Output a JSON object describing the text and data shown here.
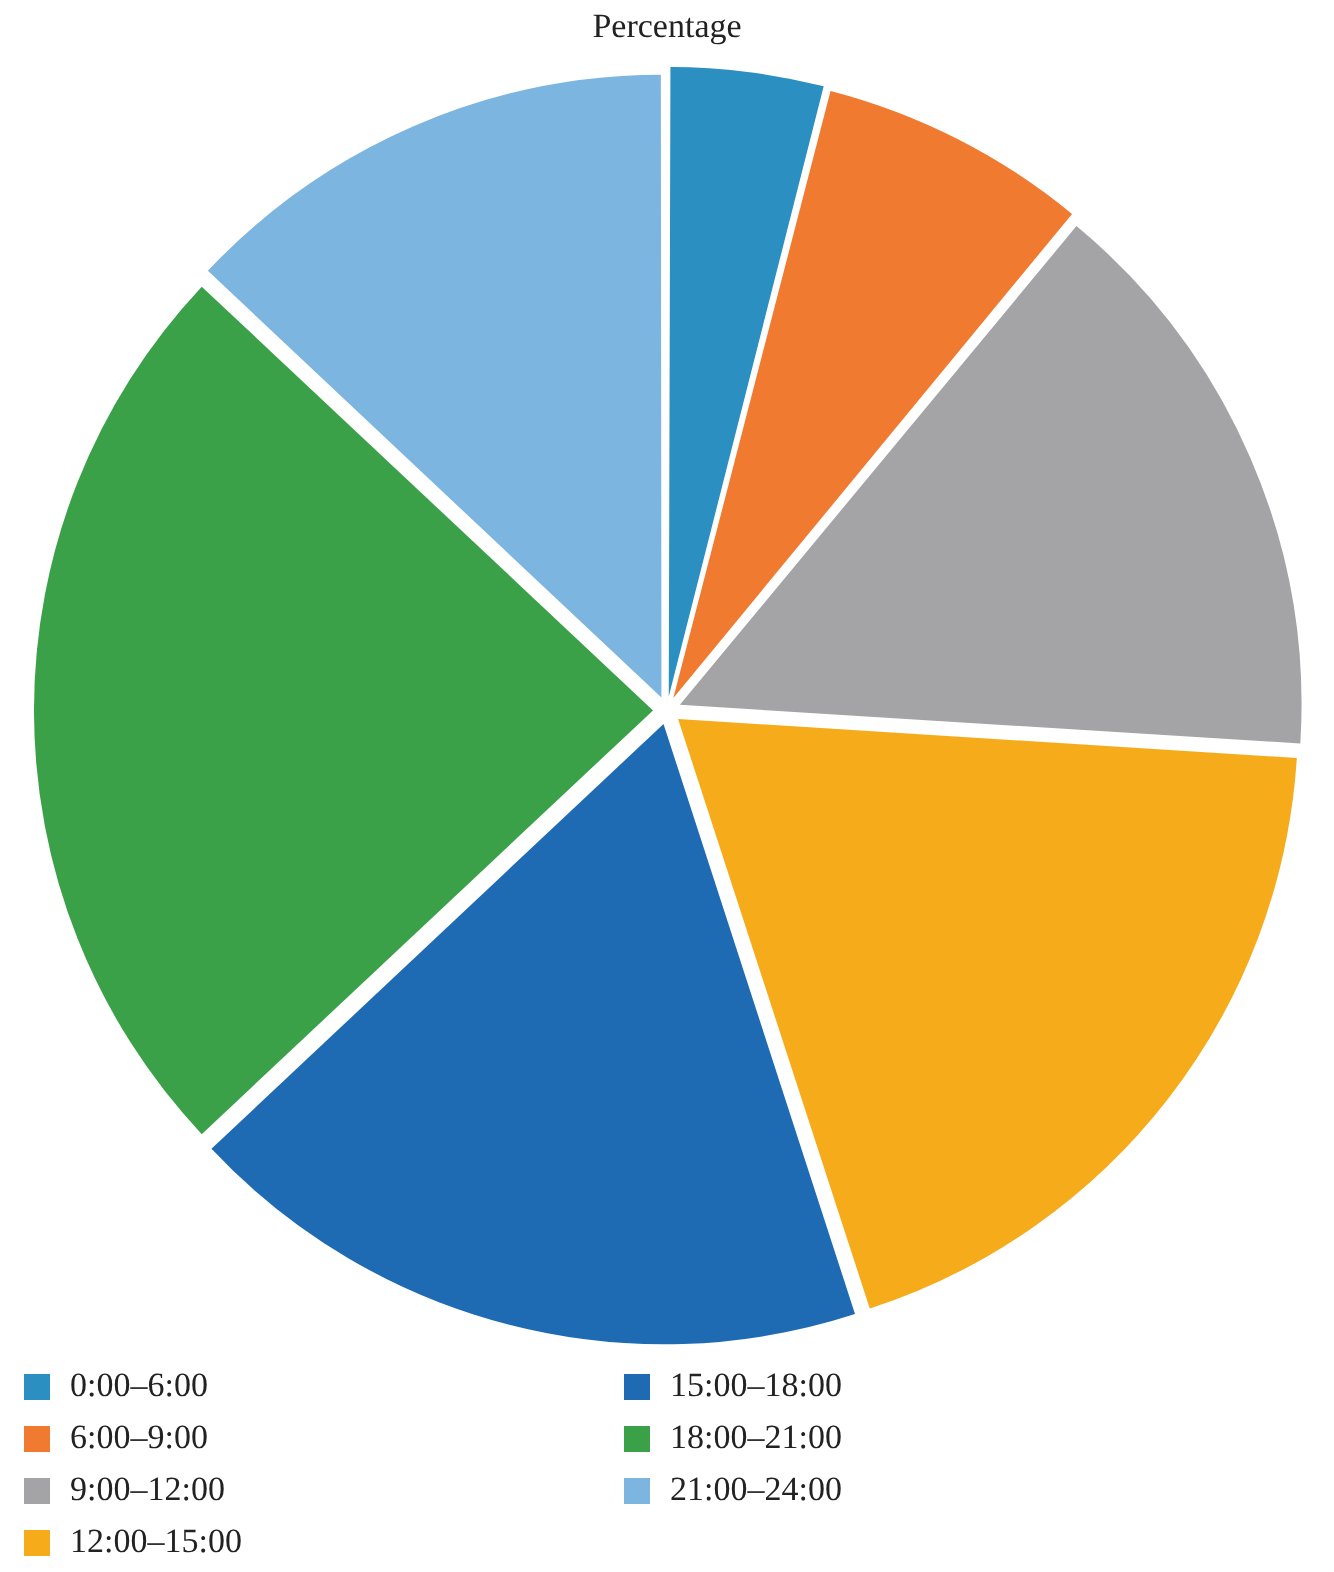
{
  "chart_data": {
    "type": "pie",
    "title": "Percentage",
    "categories": [
      "0:00–6:00",
      "6:00–9:00",
      "9:00–12:00",
      "12:00–15:00",
      "15:00–18:00",
      "18:00–21:00",
      "21:00–24:00"
    ],
    "values": [
      4,
      7,
      15,
      19,
      18,
      24,
      13
    ],
    "colors": [
      "#2b8fc2",
      "#f07a30",
      "#a4a4a7",
      "#f6ab1b",
      "#1e6bb3",
      "#3aa148",
      "#7cb5df"
    ],
    "legend": "bottom"
  }
}
